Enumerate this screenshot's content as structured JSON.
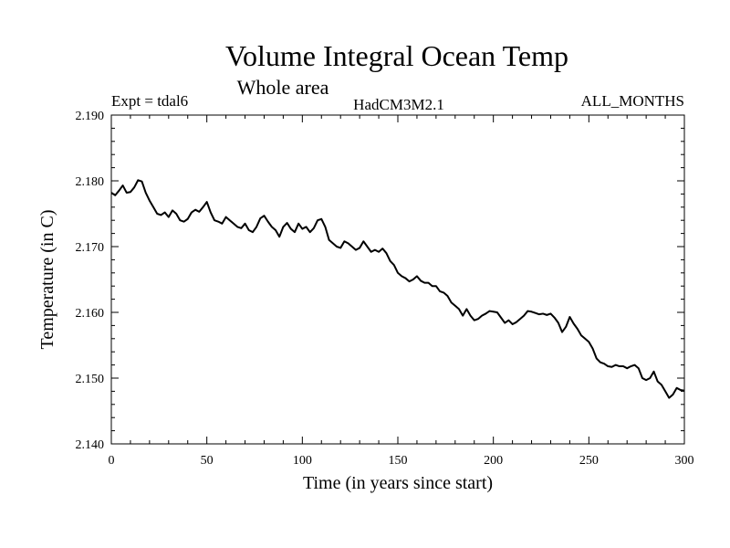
{
  "chart_data": {
    "type": "line",
    "title": "Volume Integral Ocean Temp",
    "subtitle": "Whole area",
    "left_label": "Expt = tdal6",
    "center_label": "HadCM3M2.1",
    "right_label": "ALL_MONTHS",
    "xlabel": "Time (in years since start)",
    "ylabel": "Temperature (in C)",
    "xlim": [
      0,
      300
    ],
    "ylim": [
      2.14,
      2.19
    ],
    "x_ticks": [
      0,
      50,
      100,
      150,
      200,
      250,
      300
    ],
    "x_tick_labels": [
      "0",
      "50",
      "100",
      "150",
      "200",
      "250",
      "300"
    ],
    "y_ticks": [
      2.14,
      2.15,
      2.16,
      2.17,
      2.18,
      2.19
    ],
    "y_tick_labels": [
      "2.140",
      "2.150",
      "2.160",
      "2.170",
      "2.180",
      "2.190"
    ],
    "series": [
      {
        "name": "Volume Integral Ocean Temp",
        "color": "#000000",
        "x": [
          0,
          2,
          4,
          6,
          8,
          10,
          12,
          14,
          16,
          18,
          20,
          22,
          24,
          26,
          28,
          30,
          32,
          34,
          36,
          38,
          40,
          42,
          44,
          46,
          48,
          50,
          52,
          54,
          56,
          58,
          60,
          62,
          64,
          66,
          68,
          70,
          72,
          74,
          76,
          78,
          80,
          82,
          84,
          86,
          88,
          90,
          92,
          94,
          96,
          98,
          100,
          102,
          104,
          106,
          108,
          110,
          112,
          114,
          116,
          118,
          120,
          122,
          124,
          126,
          128,
          130,
          132,
          134,
          136,
          138,
          140,
          142,
          144,
          146,
          148,
          150,
          152,
          154,
          156,
          158,
          160,
          162,
          164,
          166,
          168,
          170,
          172,
          174,
          176,
          178,
          180,
          182,
          184,
          186,
          188,
          190,
          192,
          194,
          196,
          198,
          200,
          202,
          204,
          206,
          208,
          210,
          212,
          214,
          216,
          218,
          220,
          222,
          224,
          226,
          228,
          230,
          232,
          234,
          236,
          238,
          240,
          242,
          244,
          246,
          248,
          250,
          252,
          254,
          256,
          258,
          260,
          262,
          264,
          266,
          268,
          270,
          272,
          274,
          276,
          278,
          280,
          282,
          284,
          286,
          288,
          290,
          292,
          294,
          296,
          298,
          300
        ],
        "values": [
          2.1782,
          2.1778,
          2.1785,
          2.1793,
          2.1782,
          2.1783,
          2.179,
          2.1801,
          2.1799,
          2.1782,
          2.177,
          2.176,
          2.175,
          2.1748,
          2.1752,
          2.1745,
          2.1755,
          2.175,
          2.174,
          2.1738,
          2.1742,
          2.1752,
          2.1756,
          2.1753,
          2.176,
          2.1768,
          2.1752,
          2.174,
          2.1738,
          2.1735,
          2.1745,
          2.174,
          2.1735,
          2.173,
          2.1728,
          2.1735,
          2.1725,
          2.1722,
          2.173,
          2.1743,
          2.1747,
          2.1738,
          2.173,
          2.1725,
          2.1715,
          2.173,
          2.1736,
          2.1727,
          2.1722,
          2.1735,
          2.1727,
          2.173,
          2.1722,
          2.1728,
          2.174,
          2.1742,
          2.173,
          2.171,
          2.1705,
          2.17,
          2.1698,
          2.1708,
          2.1705,
          2.17,
          2.1695,
          2.1698,
          2.1708,
          2.17,
          2.1692,
          2.1695,
          2.1692,
          2.1697,
          2.169,
          2.1678,
          2.1672,
          2.166,
          2.1655,
          2.1652,
          2.1647,
          2.165,
          2.1655,
          2.1648,
          2.1645,
          2.1645,
          2.164,
          2.164,
          2.1632,
          2.163,
          2.1625,
          2.1615,
          2.161,
          2.1605,
          2.1595,
          2.1605,
          2.1595,
          2.1588,
          2.159,
          2.1595,
          2.1598,
          2.1602,
          2.1601,
          2.16,
          2.1592,
          2.1584,
          2.1588,
          2.1582,
          2.1585,
          2.159,
          2.1595,
          2.1602,
          2.1601,
          2.1599,
          2.1597,
          2.1598,
          2.1596,
          2.1598,
          2.1592,
          2.1584,
          2.157,
          2.1578,
          2.1593,
          2.1583,
          2.1575,
          2.1565,
          2.156,
          2.1555,
          2.1545,
          2.153,
          2.1524,
          2.1522,
          2.1518,
          2.1517,
          2.152,
          2.1518,
          2.1518,
          2.1515,
          2.1518,
          2.152,
          2.1515,
          2.15,
          2.1497,
          2.15,
          2.151,
          2.1495,
          2.149,
          2.148,
          2.147,
          2.1475,
          2.1485,
          2.1482,
          2.1481
        ]
      }
    ]
  }
}
